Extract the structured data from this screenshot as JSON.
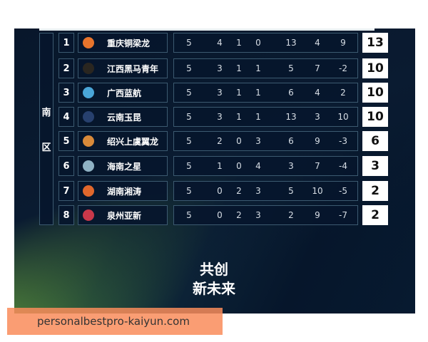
{
  "region": [
    "南",
    "区"
  ],
  "rows": [
    {
      "rank": "1",
      "team": "重庆铜梁龙",
      "logo_color": "#e8742c",
      "stats": [
        "5",
        "4",
        "1",
        "0",
        "13",
        "4",
        "9"
      ],
      "points": "13"
    },
    {
      "rank": "2",
      "team": "江西黑马青年",
      "logo_color": "#2a2620",
      "stats": [
        "5",
        "3",
        "1",
        "1",
        "5",
        "7",
        "-2"
      ],
      "points": "10"
    },
    {
      "rank": "3",
      "team": "广西蓝航",
      "logo_color": "#4aa6d8",
      "stats": [
        "5",
        "3",
        "1",
        "1",
        "6",
        "4",
        "2"
      ],
      "points": "10"
    },
    {
      "rank": "4",
      "team": "云南玉昆",
      "logo_color": "#27406e",
      "stats": [
        "5",
        "3",
        "1",
        "1",
        "13",
        "3",
        "10"
      ],
      "points": "10"
    },
    {
      "rank": "5",
      "team": "绍兴上虞翼龙",
      "logo_color": "#d98a3a",
      "stats": [
        "5",
        "2",
        "0",
        "3",
        "6",
        "9",
        "-3"
      ],
      "points": "6"
    },
    {
      "rank": "6",
      "team": "海南之星",
      "logo_color": "#8fb2c4",
      "stats": [
        "5",
        "1",
        "0",
        "4",
        "3",
        "7",
        "-4"
      ],
      "points": "3"
    },
    {
      "rank": "7",
      "team": "湖南湘涛",
      "logo_color": "#e0672c",
      "stats": [
        "5",
        "0",
        "2",
        "3",
        "5",
        "10",
        "-5"
      ],
      "points": "2"
    },
    {
      "rank": "8",
      "team": "泉州亚新",
      "logo_color": "#c8384a",
      "stats": [
        "5",
        "0",
        "2",
        "3",
        "2",
        "9",
        "-7"
      ],
      "points": "2"
    }
  ],
  "slogan": [
    "共创",
    "新未来"
  ],
  "watermark": "personalbestpro-kaiyun.com"
}
